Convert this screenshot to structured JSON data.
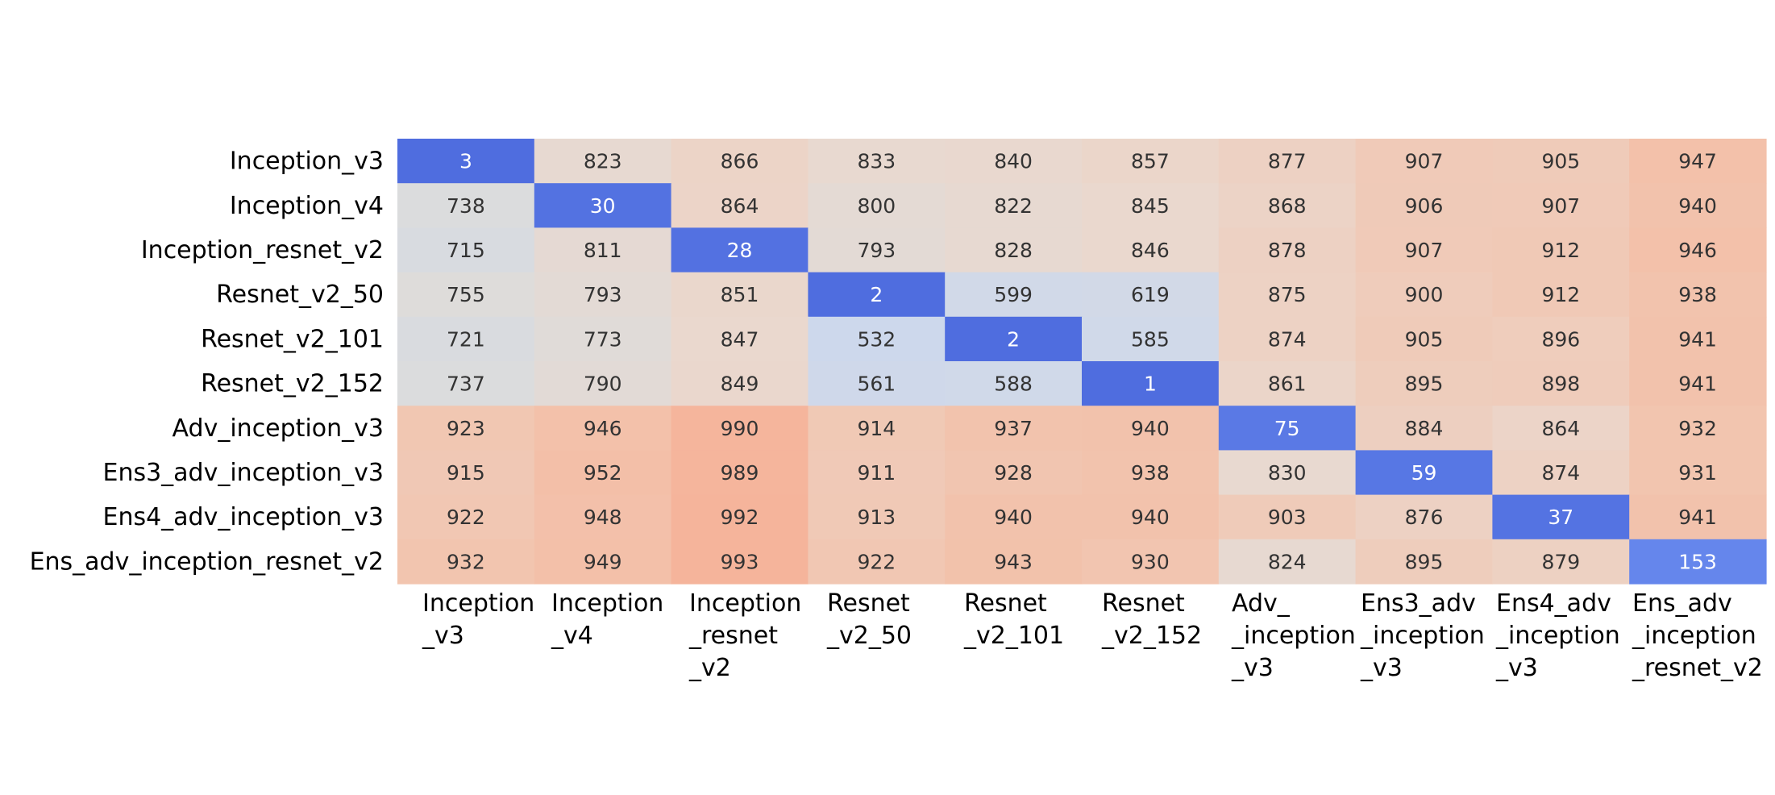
{
  "chart_data": {
    "type": "heatmap",
    "rows": [
      "Inception_v3",
      "Inception_v4",
      "Inception_resnet_v2",
      "Resnet_v2_50",
      "Resnet_v2_101",
      "Resnet_v2_152",
      "Adv_inception_v3",
      "Ens3_adv_inception_v3",
      "Ens4_adv_inception_v3",
      "Ens_adv_inception_resnet_v2"
    ],
    "columns": [
      [
        "Inception",
        "_v3"
      ],
      [
        "Inception",
        "_v4"
      ],
      [
        "Inception",
        "_resnet",
        "_v2"
      ],
      [
        "Resnet",
        "_v2_50"
      ],
      [
        "Resnet",
        "_v2_101"
      ],
      [
        "Resnet",
        "_v2_152"
      ],
      [
        "Adv_",
        "_inception",
        "_v3"
      ],
      [
        "Ens3_adv",
        "_inception",
        "_v3"
      ],
      [
        "Ens4_adv",
        "_inception",
        "_v3"
      ],
      [
        "Ens_adv",
        "_inception",
        "_resnet_v2"
      ]
    ],
    "values": [
      [
        3,
        823,
        866,
        833,
        840,
        857,
        877,
        907,
        905,
        947
      ],
      [
        738,
        30,
        864,
        800,
        822,
        845,
        868,
        906,
        907,
        940
      ],
      [
        715,
        811,
        28,
        793,
        828,
        846,
        878,
        907,
        912,
        946
      ],
      [
        755,
        793,
        851,
        2,
        599,
        619,
        875,
        900,
        912,
        938
      ],
      [
        721,
        773,
        847,
        532,
        2,
        585,
        874,
        905,
        896,
        941
      ],
      [
        737,
        790,
        849,
        561,
        588,
        1,
        861,
        895,
        898,
        941
      ],
      [
        923,
        946,
        990,
        914,
        937,
        940,
        75,
        884,
        864,
        932
      ],
      [
        915,
        952,
        989,
        911,
        928,
        938,
        830,
        59,
        874,
        931
      ],
      [
        922,
        948,
        992,
        913,
        940,
        940,
        903,
        876,
        37,
        941
      ],
      [
        932,
        949,
        993,
        922,
        943,
        930,
        824,
        895,
        879,
        153
      ]
    ],
    "colormap": "coolwarm",
    "color_low": "#4f6ddf",
    "color_mid": "#dcdcdc",
    "color_high": "#f5b39a",
    "text_color_dark": "#333333",
    "text_color_light": "#ffffff",
    "title": "",
    "xlabel": "",
    "ylabel": ""
  }
}
